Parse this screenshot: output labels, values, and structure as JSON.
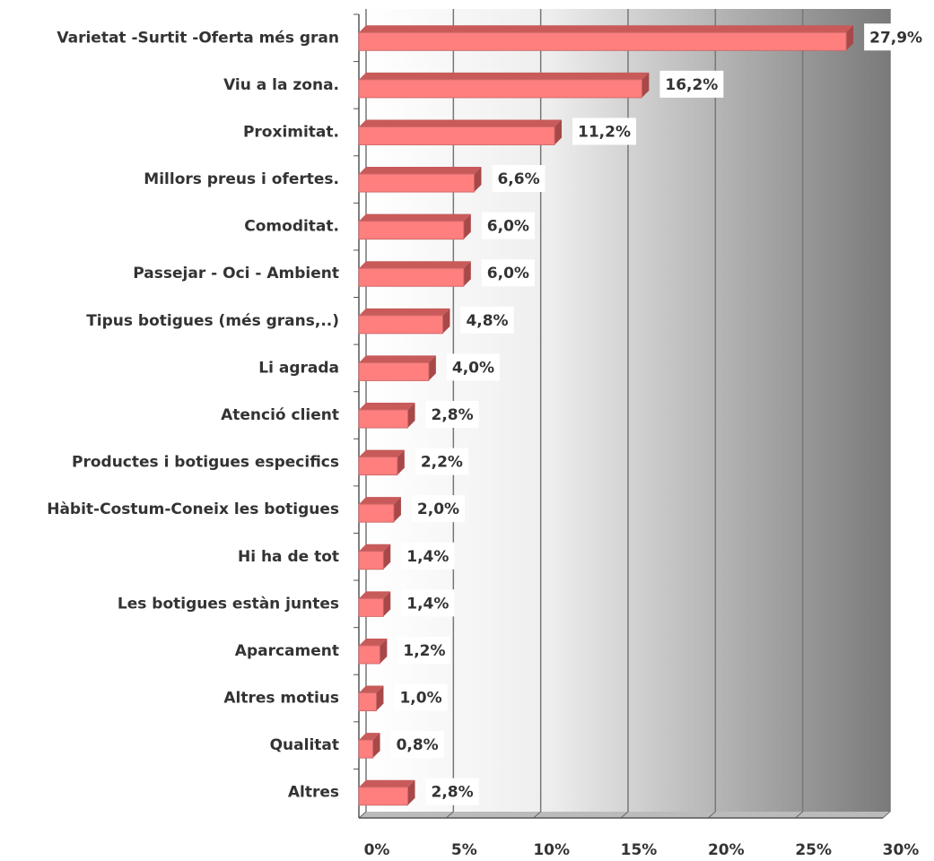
{
  "chart_data": {
    "type": "bar",
    "orientation": "horizontal",
    "categories": [
      "Varietat -Surtit -Oferta més gran",
      "Viu a la zona.",
      "Proximitat.",
      "Millors preus i ofertes.",
      "Comoditat.",
      "Passejar - Oci - Ambient",
      "Tipus botigues (més  grans,..)",
      "Li agrada",
      "Atenció client",
      "Productes i botigues especifics",
      "Hàbit-Costum-Coneix les botigues",
      "Hi ha de tot",
      "Les botigues estàn juntes",
      "Aparcament",
      "Altres motius",
      "Qualitat",
      "Altres"
    ],
    "values": [
      27.9,
      16.2,
      11.2,
      6.6,
      6.0,
      6.0,
      4.8,
      4.0,
      2.8,
      2.2,
      2.0,
      1.4,
      1.4,
      1.2,
      1.0,
      0.8,
      2.8
    ],
    "value_labels": [
      "27,9%",
      "16,2%",
      "11,2%",
      "6,6%",
      "6,0%",
      "6,0%",
      "4,8%",
      "4,0%",
      "2,8%",
      "2,2%",
      "2,0%",
      "1,4%",
      "1,4%",
      "1,2%",
      "1,0%",
      "0,8%",
      "2,8%"
    ],
    "color": "#ff7f7f",
    "xlim": [
      0,
      30
    ],
    "xticks": [
      {
        "value": 0,
        "label": "0%"
      },
      {
        "value": 5,
        "label": "5%"
      },
      {
        "value": 10,
        "label": "10%"
      },
      {
        "value": 15,
        "label": "15%"
      },
      {
        "value": 20,
        "label": "20%"
      },
      {
        "value": 25,
        "label": "25%"
      },
      {
        "value": 30,
        "label": "30%"
      }
    ],
    "grid": true
  }
}
